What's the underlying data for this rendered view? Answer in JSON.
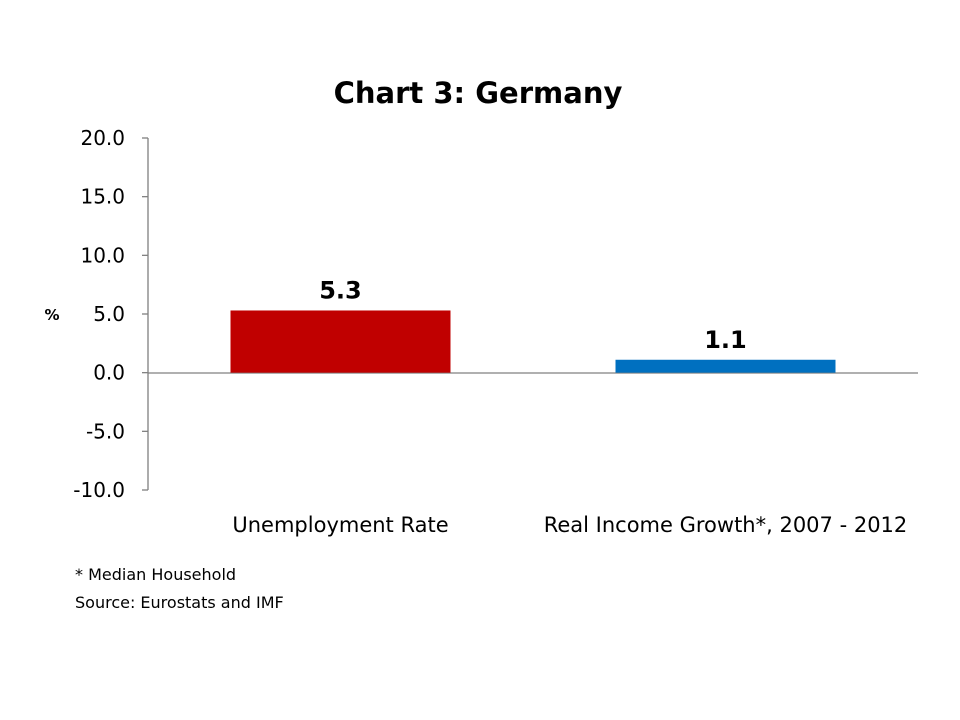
{
  "chart_data": {
    "type": "bar",
    "title": "Chart 3: Germany",
    "ylabel": "%",
    "xlabel": "",
    "categories": [
      "Unemployment Rate",
      "Real Income Growth*, 2007 - 2012"
    ],
    "values": [
      5.3,
      1.1
    ],
    "data_labels": [
      "5.3",
      "1.1"
    ],
    "colors": [
      "#C00000",
      "#0070C0"
    ],
    "ylim": [
      -10,
      20
    ],
    "yticks": [
      20,
      15,
      10,
      5,
      0,
      -5,
      -10
    ],
    "ytick_labels": [
      "20.0",
      "15.0",
      "10.0",
      "5.0",
      "0.0",
      "-5.0",
      "-10.0"
    ],
    "grid": false,
    "legend": "none"
  },
  "footnotes": {
    "note": "* Median Household",
    "source": "Source: Eurostats and IMF"
  }
}
